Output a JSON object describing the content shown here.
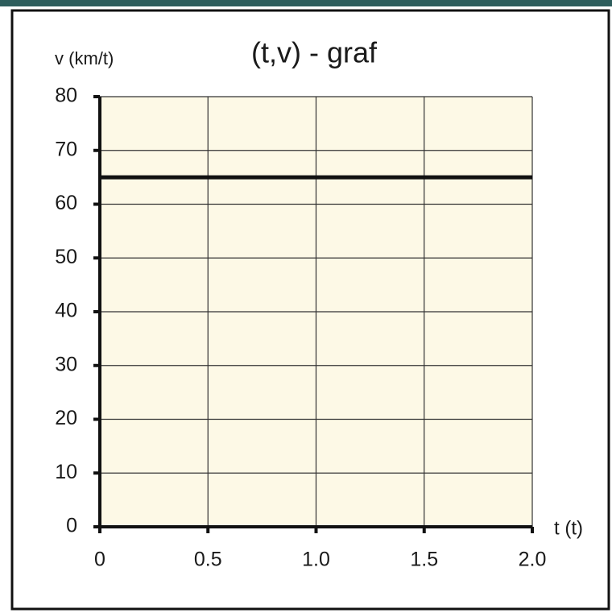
{
  "chart_data": {
    "type": "line",
    "title": "(t,v) - graf",
    "y_label": "v (km/t)",
    "x_label": "t (t)",
    "x": [
      0,
      2
    ],
    "values": [
      65,
      65
    ],
    "color": "#111111",
    "xlim": [
      0,
      2
    ],
    "ylim": [
      0,
      80
    ],
    "xticks": [
      0,
      0.5,
      {
        "value": 1,
        "label": "1.0"
      },
      1.5,
      {
        "value": 2,
        "label": "2.0"
      }
    ],
    "yticks": [
      0,
      10,
      20,
      30,
      40,
      50,
      60,
      70,
      80
    ],
    "grid": true
  }
}
